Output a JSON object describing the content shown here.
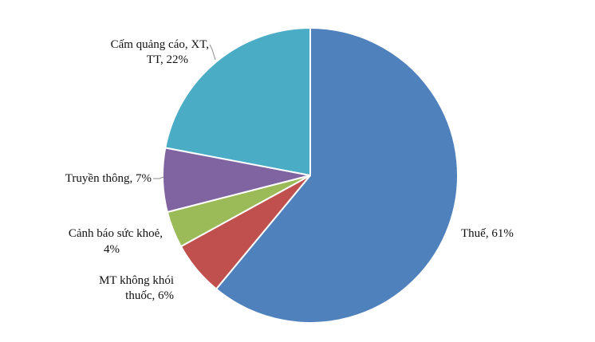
{
  "chart_data": {
    "type": "pie",
    "title": "",
    "slices": [
      {
        "name": "Thuế",
        "value": 61,
        "label": "Thuế, 61%",
        "color": "#4F81BD"
      },
      {
        "name": "MT không khói thuốc",
        "value": 6,
        "label_lines": [
          "MT không khói",
          "thuốc, 6%"
        ],
        "color": "#C0504D"
      },
      {
        "name": "Cảnh báo sức khoẻ",
        "value": 4,
        "label_lines": [
          "Cảnh báo sức khoẻ,",
          "4%"
        ],
        "color": "#9BBB59"
      },
      {
        "name": "Truyền thông",
        "value": 7,
        "label": "Truyền thông, 7%",
        "color": "#8064A2"
      },
      {
        "name": "Cấm quảng cáo, XT, TT",
        "value": 22,
        "label_lines": [
          "Cấm quảng cáo, XT,",
          "TT, 22%"
        ],
        "color": "#4BACC6"
      }
    ],
    "start_angle": "12 o'clock",
    "direction": "clockwise",
    "legend": "none"
  }
}
